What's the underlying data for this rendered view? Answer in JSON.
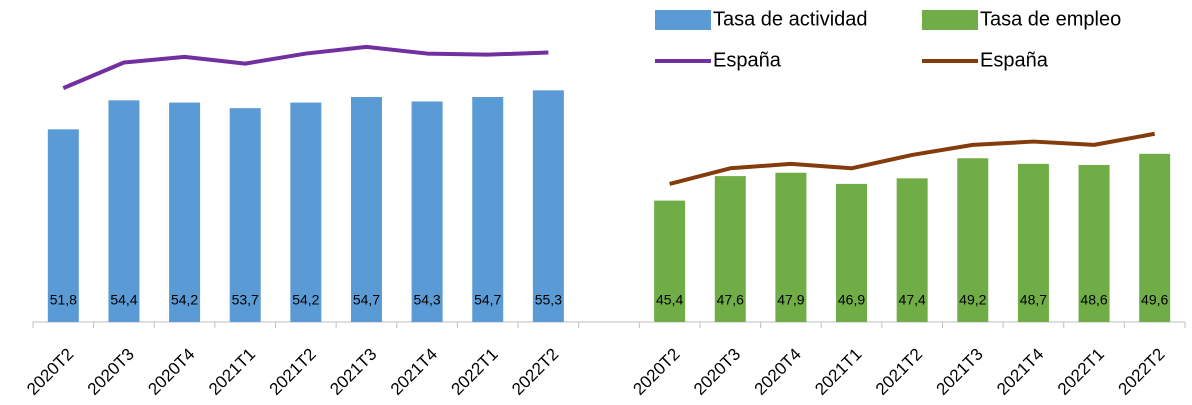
{
  "chart_data": {
    "type": "bar",
    "categories": [
      "2020T2",
      "2020T3",
      "2020T4",
      "2021T1",
      "2021T2",
      "2021T3",
      "2021T4",
      "2022T1",
      "2022T2",
      null,
      "2020T2",
      "2020T3",
      "2020T4",
      "2021T1",
      "2021T2",
      "2021T3",
      "2021T4",
      "2022T1",
      "2022T2"
    ],
    "ylim": [
      34.5,
      62
    ],
    "series": [
      {
        "name": "Tasa de actividad",
        "type": "bar",
        "color": "#5b9bd5",
        "values": [
          51.8,
          54.4,
          54.2,
          53.7,
          54.2,
          54.7,
          54.3,
          54.7,
          55.3,
          null,
          null,
          null,
          null,
          null,
          null,
          null,
          null,
          null,
          null
        ],
        "value_labels": [
          "51,8",
          "54,4",
          "54,2",
          "53,7",
          "54,2",
          "54,7",
          "54,3",
          "54,7",
          "55,3",
          null,
          null,
          null,
          null,
          null,
          null,
          null,
          null,
          null,
          null
        ]
      },
      {
        "name": "Tasa de empleo",
        "type": "bar",
        "color": "#70ad47",
        "values": [
          null,
          null,
          null,
          null,
          null,
          null,
          null,
          null,
          null,
          null,
          45.4,
          47.6,
          47.9,
          46.9,
          47.4,
          49.2,
          48.7,
          48.6,
          49.6
        ],
        "value_labels": [
          null,
          null,
          null,
          null,
          null,
          null,
          null,
          null,
          null,
          null,
          "45,4",
          "47,6",
          "47,9",
          "46,9",
          "47,4",
          "49,2",
          "48,7",
          "48,6",
          "49,6"
        ]
      },
      {
        "name": "España",
        "type": "line",
        "color": "#7030a0",
        "values": [
          55.5,
          57.8,
          58.3,
          57.7,
          58.6,
          59.2,
          58.6,
          58.5,
          58.7,
          null,
          null,
          null,
          null,
          null,
          null,
          null,
          null,
          null,
          null
        ]
      },
      {
        "name": "España",
        "type": "line",
        "color": "#843c0c",
        "values": [
          null,
          null,
          null,
          null,
          null,
          null,
          null,
          null,
          null,
          null,
          46.9,
          48.3,
          48.7,
          48.3,
          49.5,
          50.4,
          50.7,
          50.4,
          51.4
        ]
      }
    ]
  }
}
